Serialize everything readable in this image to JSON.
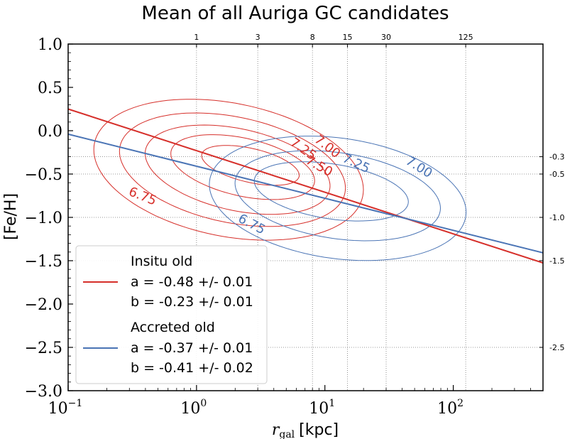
{
  "chart_data": {
    "type": "line",
    "title": "Mean of all Auriga GC candidates",
    "xlabel_math": "r",
    "xlabel_sub": "gal",
    "xlabel_unit": "[kpc]",
    "ylabel": "[Fe/H]",
    "xscale": "log",
    "xlim": [
      0.1,
      500
    ],
    "ylim": [
      -3.0,
      1.0
    ],
    "yticks": [
      {
        "value": 1.0,
        "label": "1.0"
      },
      {
        "value": 0.5,
        "label": "0.5"
      },
      {
        "value": 0.0,
        "label": "0.0"
      },
      {
        "value": -0.5,
        "label": "−0.5"
      },
      {
        "value": -1.0,
        "label": "−1.0"
      },
      {
        "value": -1.5,
        "label": "−1.5"
      },
      {
        "value": -2.0,
        "label": "−2.0"
      },
      {
        "value": -2.5,
        "label": "−2.5"
      },
      {
        "value": -3.0,
        "label": "−3.0"
      }
    ],
    "xticks": [
      {
        "value": 0.1,
        "base": "10",
        "exp": "−1"
      },
      {
        "value": 1,
        "base": "10",
        "exp": "0"
      },
      {
        "value": 10,
        "base": "10",
        "exp": "1"
      },
      {
        "value": 100,
        "base": "10",
        "exp": "2"
      }
    ],
    "top_ticks": [
      {
        "value": 1,
        "label": "1"
      },
      {
        "value": 3,
        "label": "3"
      },
      {
        "value": 8,
        "label": "8"
      },
      {
        "value": 15,
        "label": "15"
      },
      {
        "value": 30,
        "label": "30"
      },
      {
        "value": 125,
        "label": "125"
      }
    ],
    "right_ticks": [
      {
        "value": -0.3,
        "label": "-0.3"
      },
      {
        "value": -0.5,
        "label": "-0.5"
      },
      {
        "value": -1.0,
        "label": "-1.0"
      },
      {
        "value": -1.5,
        "label": "-1.5"
      },
      {
        "value": -2.5,
        "label": "-2.5"
      }
    ],
    "series": [
      {
        "name": "Insitu old",
        "color": "#d62f2a",
        "slope": -0.48,
        "intercept": -0.23
      },
      {
        "name": "Accreted old",
        "color": "#4a74b5",
        "slope": -0.37,
        "intercept": -0.41
      }
    ],
    "contours": [
      {
        "color": "#d62f2a",
        "rings": [
          {
            "center": [
              0.25,
              -0.45
            ],
            "half_width": 1.05,
            "half_height": 0.78,
            "tilt": -0.22
          },
          {
            "center": [
              0.28,
              -0.45
            ],
            "half_width": 0.88,
            "half_height": 0.62,
            "tilt": -0.24
          },
          {
            "center": [
              0.32,
              -0.45
            ],
            "half_width": 0.72,
            "half_height": 0.48,
            "tilt": -0.26
          },
          {
            "center": [
              0.36,
              -0.42
            ],
            "half_width": 0.56,
            "half_height": 0.34,
            "tilt": -0.28
          },
          {
            "center": [
              0.42,
              -0.4
            ],
            "half_width": 0.38,
            "half_height": 0.2,
            "tilt": -0.3
          }
        ]
      },
      {
        "color": "#4a74b5",
        "rings": [
          {
            "center": [
              1.1,
              -0.78
            ],
            "half_width": 1.0,
            "half_height": 0.7,
            "tilt": -0.16
          },
          {
            "center": [
              1.1,
              -0.75
            ],
            "half_width": 0.8,
            "half_height": 0.5,
            "tilt": -0.18
          },
          {
            "center": [
              1.05,
              -0.7
            ],
            "half_width": 0.6,
            "half_height": 0.32,
            "tilt": -0.2
          }
        ]
      }
    ],
    "contour_labels": [
      {
        "text": "6.75",
        "x": 0.37,
        "y": -0.8,
        "angle": 22,
        "color": "#d62f2a"
      },
      {
        "text": "7.25",
        "x": 6.5,
        "y": -0.25,
        "angle": 35,
        "color": "#d62f2a"
      },
      {
        "text": "7.00",
        "x": 10.0,
        "y": -0.22,
        "angle": 38,
        "color": "#d62f2a"
      },
      {
        "text": "7.50",
        "x": 8.7,
        "y": -0.45,
        "angle": 30,
        "color": "#d62f2a"
      },
      {
        "text": "6.75",
        "x": 2.6,
        "y": -1.12,
        "angle": 28,
        "color": "#4a74b5"
      },
      {
        "text": "7.25",
        "x": 17,
        "y": -0.42,
        "angle": 25,
        "color": "#4a74b5"
      },
      {
        "text": "7.00",
        "x": 52,
        "y": -0.46,
        "angle": 32,
        "color": "#4a74b5"
      }
    ],
    "legend": {
      "location": "lower-left",
      "entries": [
        {
          "title": "Insitu old",
          "line1": "a = -0.48 +/- 0.01",
          "line2": "b = -0.23 +/- 0.01",
          "color": "#d62f2a"
        },
        {
          "title": "Accreted old",
          "line1": "a = -0.37 +/- 0.01",
          "line2": "b = -0.41 +/- 0.02",
          "color": "#4a74b5"
        }
      ]
    }
  }
}
